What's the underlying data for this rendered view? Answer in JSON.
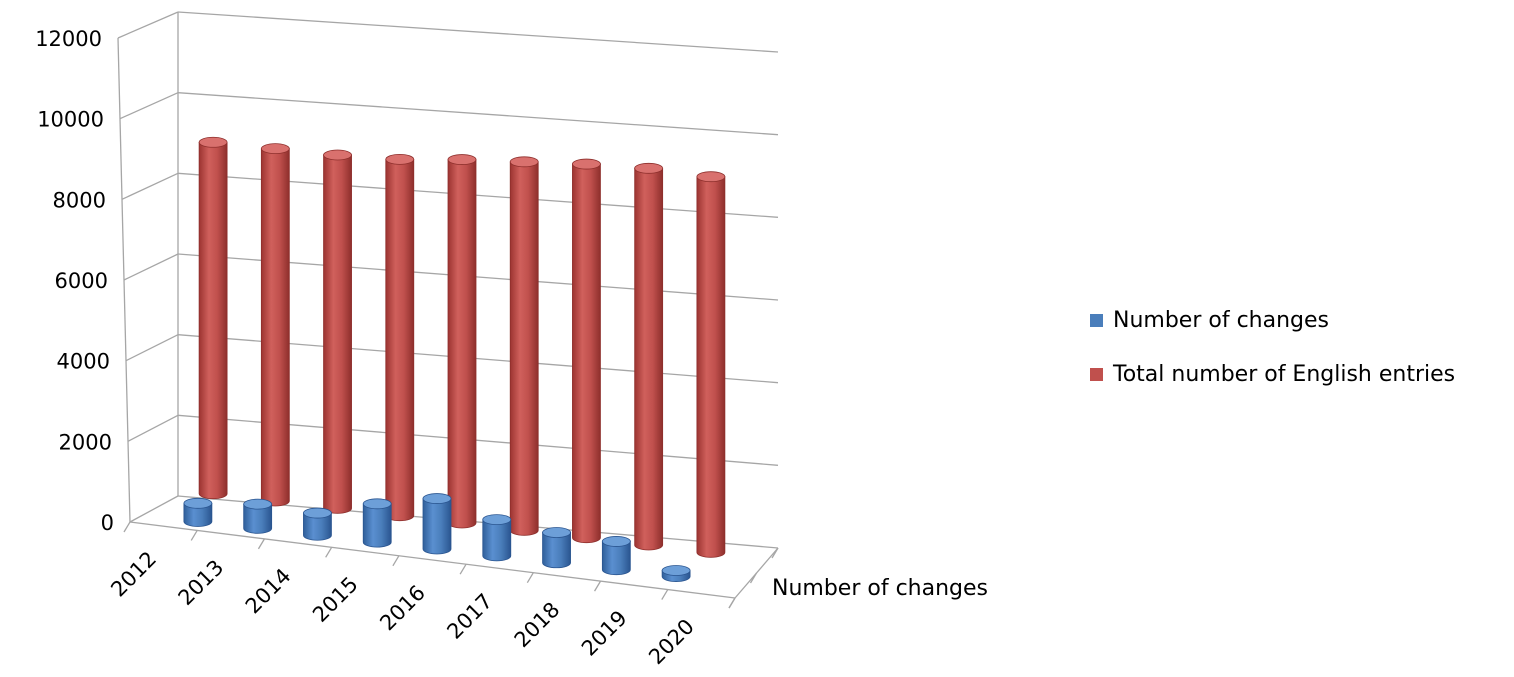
{
  "chart_data": {
    "type": "bar",
    "style": "3d-cylinder",
    "categories": [
      "2012",
      "2013",
      "2014",
      "2015",
      "2016",
      "2017",
      "2018",
      "2019",
      "2020"
    ],
    "series": [
      {
        "name": "Number of changes",
        "color": "#4a7ebb",
        "values": [
          450,
          600,
          550,
          950,
          1250,
          900,
          750,
          700,
          150
        ]
      },
      {
        "name": "Total number of English entries",
        "color": "#c0504d",
        "values": [
          8700,
          8700,
          8700,
          8750,
          8900,
          9000,
          9100,
          9150,
          9100
        ]
      }
    ],
    "depth_label": "Number of changes",
    "yticks": [
      "0",
      "2000",
      "4000",
      "6000",
      "8000",
      "10000",
      "12000"
    ],
    "ylim": [
      0,
      12000
    ],
    "grid": true,
    "legend": "right"
  }
}
